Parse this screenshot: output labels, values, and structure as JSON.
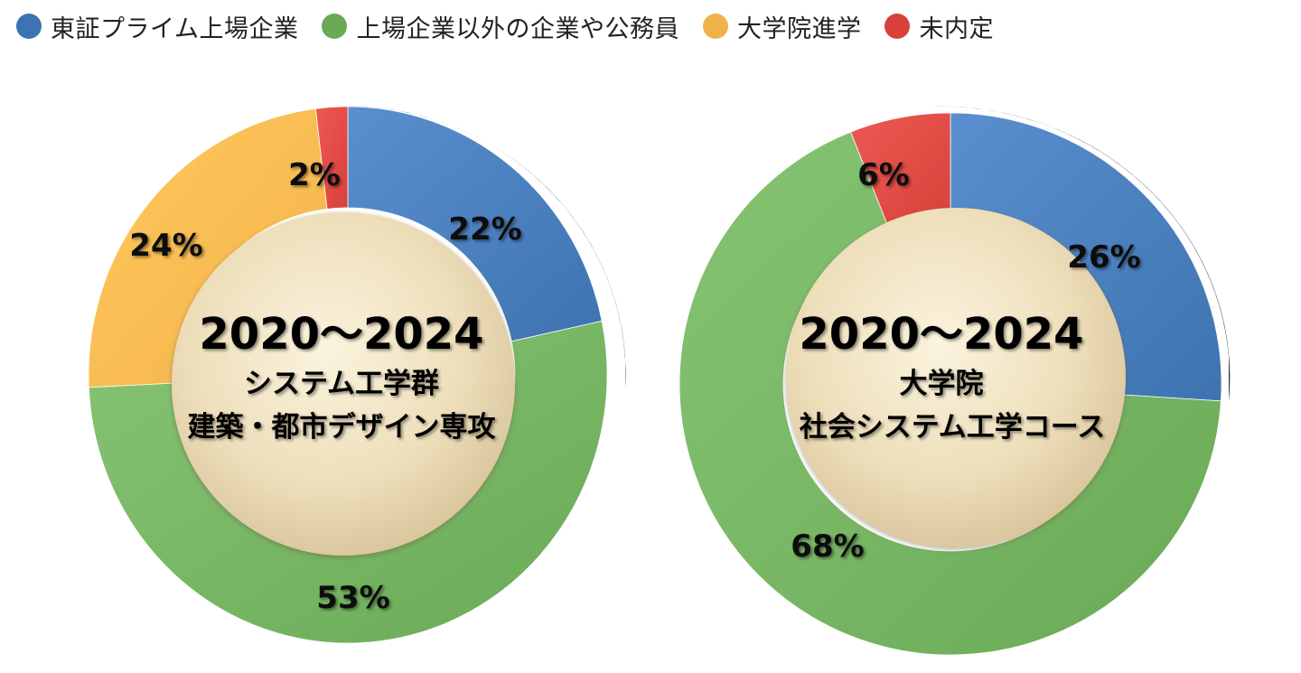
{
  "legend": [
    {
      "label": "東証プライム上場企業",
      "color": "#3E73B1"
    },
    {
      "label": "上場企業以外の企業や公務員",
      "color": "#6AAA56"
    },
    {
      "label": "大学院進学",
      "color": "#F2B24A"
    },
    {
      "label": "未内定",
      "color": "#D9403A"
    }
  ],
  "chart_data": [
    {
      "type": "pie",
      "variant": "donut",
      "center_title": "2020〜2024",
      "center_lines": [
        "システム工学群",
        "建築・都市デザイン専攻"
      ],
      "categories": [
        "東証プライム上場企業",
        "上場企業以外の企業や公務員",
        "大学院進学",
        "未内定"
      ],
      "values": [
        22,
        53,
        24,
        2
      ],
      "labels": [
        "22%",
        "53%",
        "24%",
        "2%"
      ],
      "unit": "%"
    },
    {
      "type": "pie",
      "variant": "donut",
      "center_title": "2020〜2024",
      "center_lines": [
        "大学院",
        "社会システム工学コース"
      ],
      "categories": [
        "東証プライム上場企業",
        "上場企業以外の企業や公務員",
        "大学院進学",
        "未内定"
      ],
      "values": [
        26,
        68,
        0,
        6
      ],
      "labels": [
        "26%",
        "68%",
        "",
        "6%"
      ],
      "unit": "%"
    }
  ]
}
